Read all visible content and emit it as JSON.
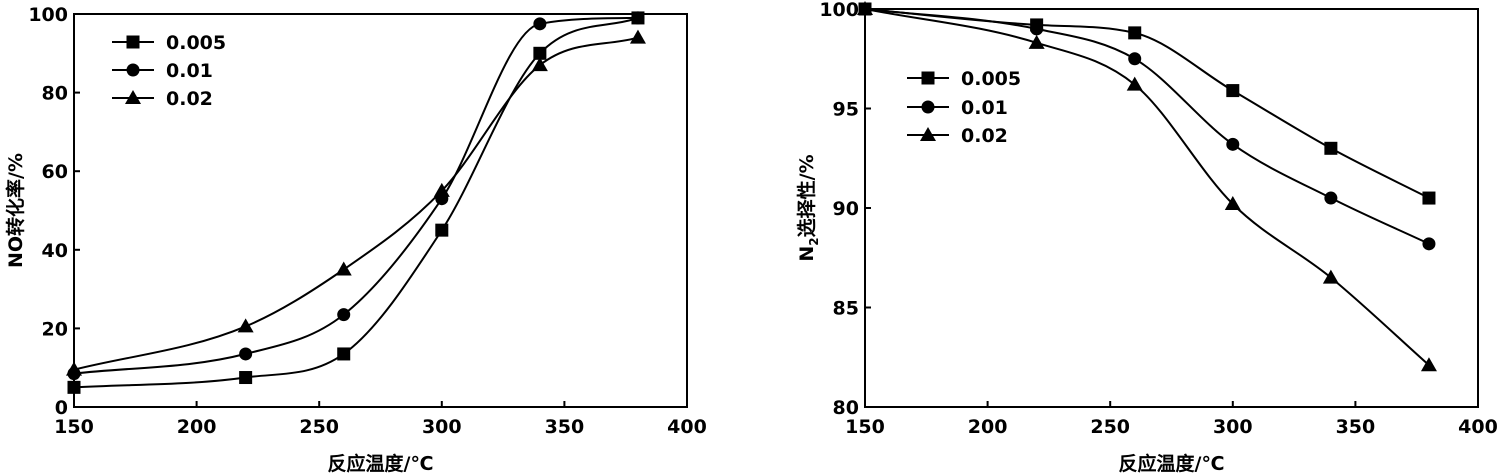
{
  "chart_data": [
    {
      "type": "line",
      "x": [
        150,
        220,
        260,
        300,
        340,
        380
      ],
      "xlim": [
        150,
        400
      ],
      "ylim": [
        0,
        100
      ],
      "xticks": [
        150,
        200,
        250,
        300,
        350,
        400
      ],
      "yticks": [
        0,
        20,
        40,
        60,
        80,
        100
      ],
      "xlabel": "反应温度/℃",
      "ylabel": "NO转化率/%",
      "grid": false,
      "legend": "top-left",
      "series": [
        {
          "name": "0.005",
          "marker": "square",
          "values": [
            5,
            7.5,
            13.5,
            45,
            90,
            99
          ]
        },
        {
          "name": "0.01",
          "marker": "circle",
          "values": [
            8.5,
            13.5,
            23.5,
            53,
            97.5,
            99
          ]
        },
        {
          "name": "0.02",
          "marker": "triangle",
          "values": [
            9.5,
            20.5,
            35,
            55,
            87,
            94
          ]
        }
      ]
    },
    {
      "type": "line",
      "x": [
        150,
        220,
        260,
        300,
        340,
        380
      ],
      "xlim": [
        150,
        400
      ],
      "ylim": [
        80,
        100
      ],
      "xticks": [
        150,
        200,
        250,
        300,
        350,
        400
      ],
      "yticks": [
        80,
        85,
        90,
        95,
        100
      ],
      "xlabel": "反应温度/℃",
      "ylabel_main": "N",
      "ylabel_sub": "2",
      "ylabel_rest": "选择性/%",
      "grid": false,
      "legend": "upper-left",
      "series": [
        {
          "name": "0.005",
          "marker": "square",
          "values": [
            100,
            99.2,
            98.8,
            95.9,
            93,
            90.5
          ]
        },
        {
          "name": "0.01",
          "marker": "circle",
          "values": [
            100,
            99,
            97.5,
            93.2,
            90.5,
            88.2
          ]
        },
        {
          "name": "0.02",
          "marker": "triangle",
          "values": [
            100,
            98.3,
            96.2,
            90.2,
            86.5,
            82.1
          ]
        }
      ]
    }
  ]
}
